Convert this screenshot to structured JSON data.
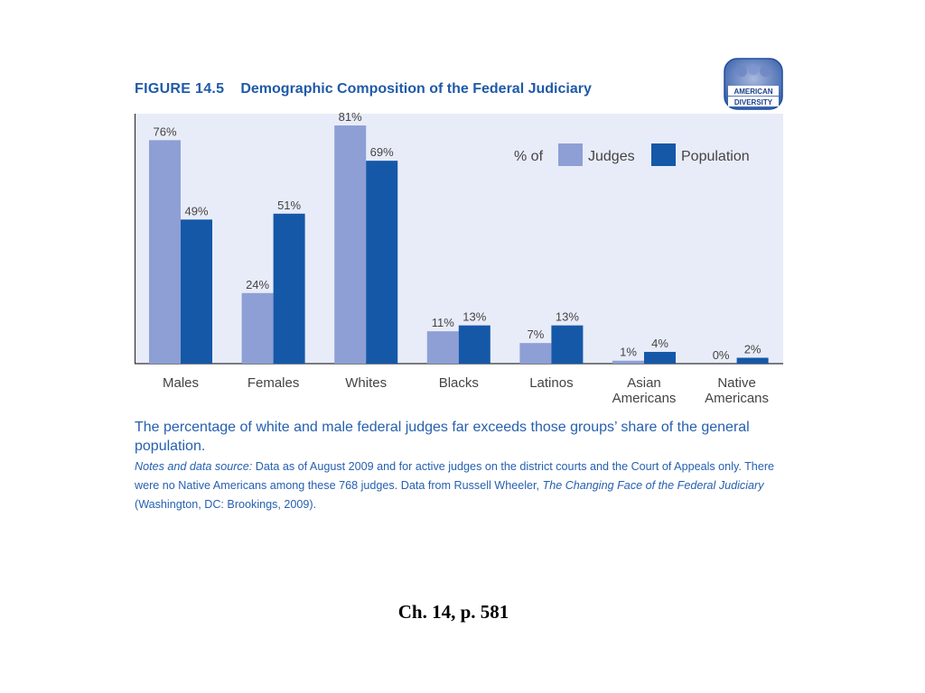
{
  "figure": {
    "number": "FIGURE 14.5",
    "title": "Demographic Composition of the Federal Judiciary",
    "badge_line1": "AMERICAN",
    "badge_line2": "DIVERSITY"
  },
  "chart_data": {
    "type": "bar",
    "categories": [
      [
        "Males"
      ],
      [
        "Females"
      ],
      [
        "Whites"
      ],
      [
        "Blacks"
      ],
      [
        "Latinos"
      ],
      [
        "Asian",
        "Americans"
      ],
      [
        "Native",
        "Americans"
      ]
    ],
    "series": [
      {
        "name": "Judges",
        "values": [
          76,
          24,
          81,
          11,
          7,
          1,
          0
        ],
        "labels": [
          "76%",
          "24%",
          "81%",
          "11%",
          "7%",
          "1%",
          "0%"
        ],
        "color": "#8d9fd4"
      },
      {
        "name": "Population",
        "values": [
          49,
          51,
          69,
          13,
          13,
          4,
          2
        ],
        "labels": [
          "49%",
          "51%",
          "69%",
          "13%",
          "13%",
          "4%",
          "2%"
        ],
        "color": "#1558a8"
      }
    ],
    "legend_prefix": "% of",
    "legend_position": "top-right",
    "ylim": [
      0,
      85
    ],
    "plot_background": "#e8ecf8",
    "grid": false
  },
  "caption": "The percentage of white and male federal judges far exceeds those groups’ share of the general population.",
  "notes": {
    "label": "Notes and data source:",
    "text1": " Data as of August 2009 and for active judges on the district courts and the Court of Appeals only. There were no Native Americans among these 768 judges. Data from Russell Wheeler, ",
    "book_title": "The Changing Face of the Federal Judiciary",
    "text2": " (Washington, DC: Brookings, 2009)."
  },
  "page_ref": "Ch. 14, p. 581"
}
